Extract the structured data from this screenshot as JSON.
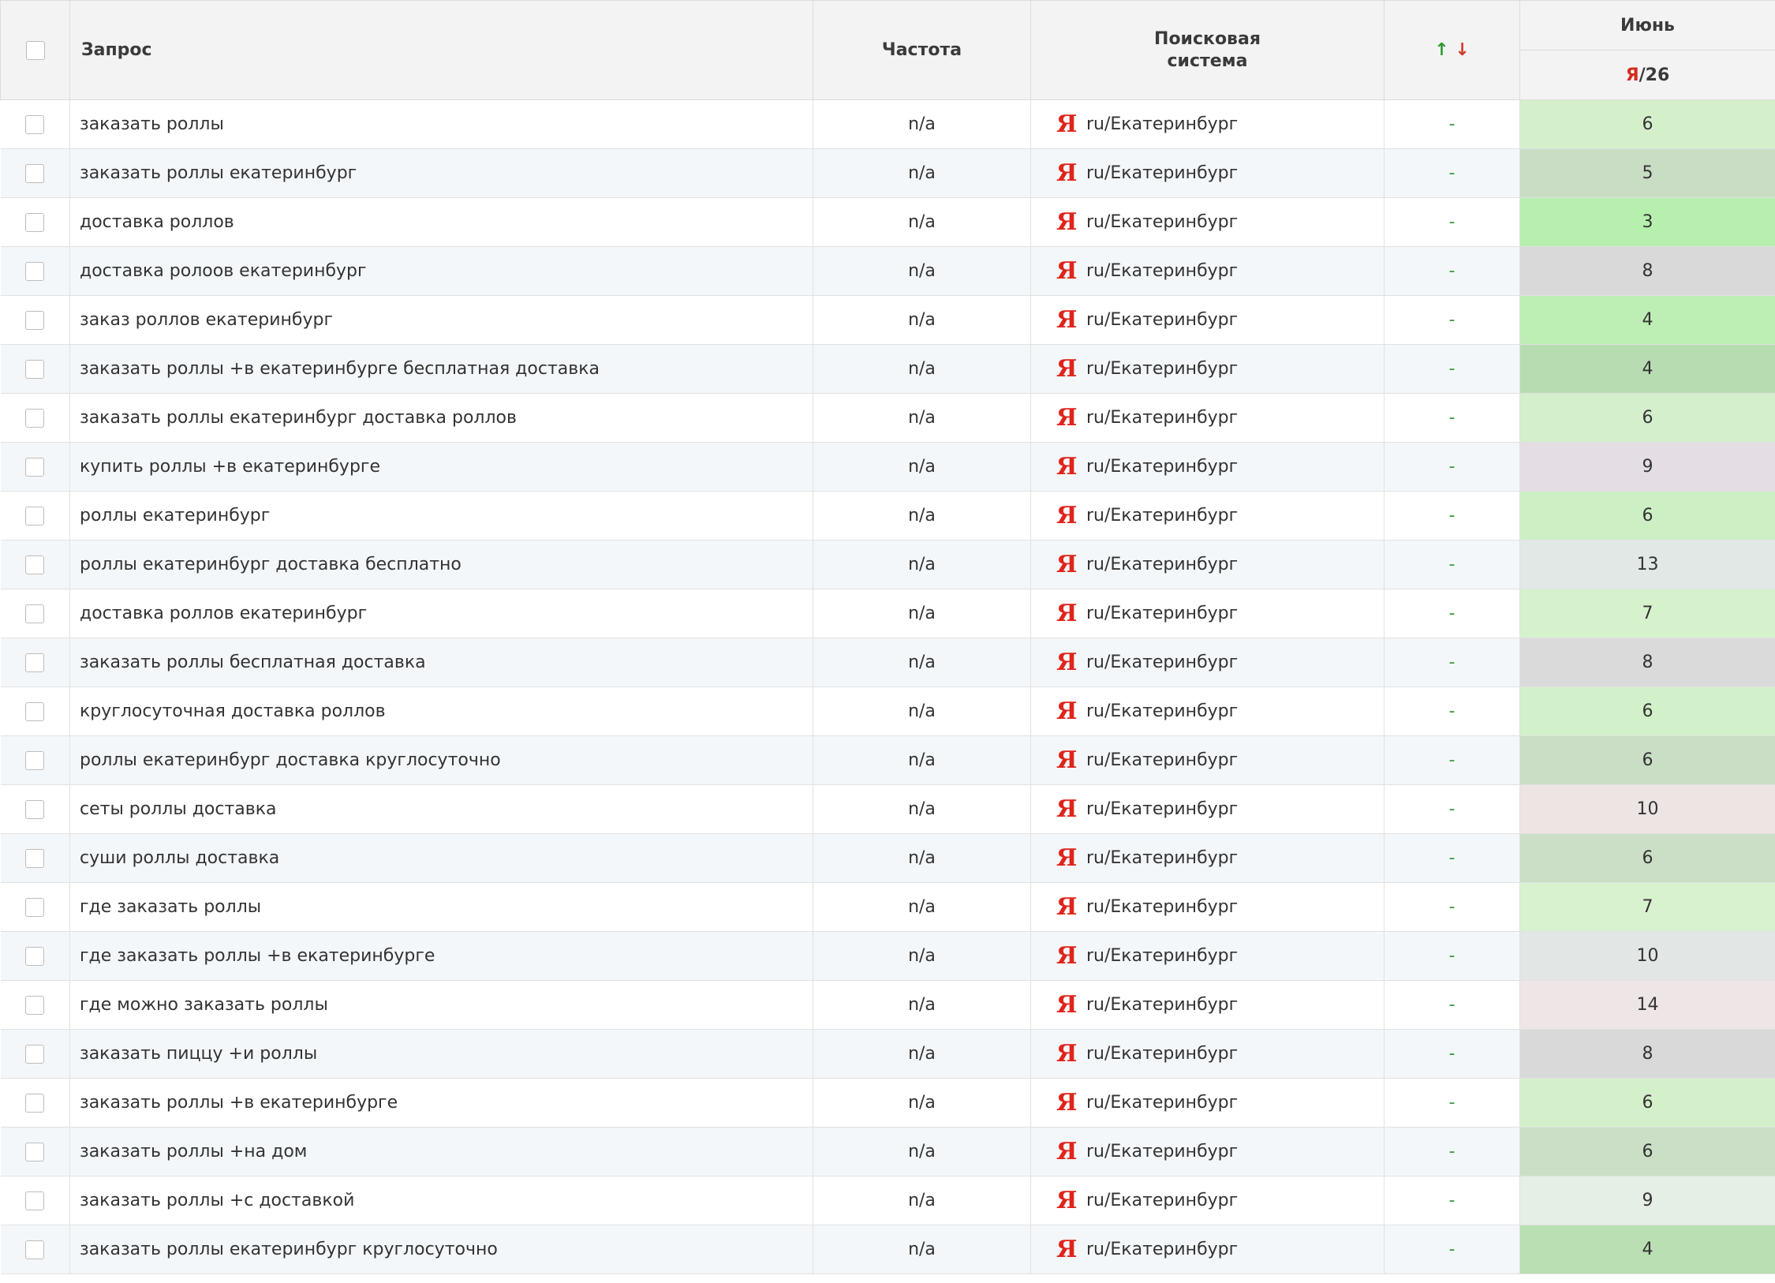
{
  "header": {
    "query": "Запрос",
    "frequency": "Частота",
    "search_engine_line1": "Поисковая",
    "search_engine_line2": "система",
    "arrow_up": "↑",
    "arrow_down": "↓",
    "month": "Июнь",
    "engine_letter": "Я",
    "engine_count": "/26"
  },
  "colors": {
    "position_bg": {
      "3": "#b7f0ae",
      "4": "#b9e6b0",
      "5": "#c9dfc6",
      "6": "#d3efcb",
      "7": "#d6f2cd",
      "8": "#dadada",
      "9": "#e3e6e6",
      "10": "#e9e4e4",
      "13": "#e3e7e6",
      "14": "#ece6e6"
    }
  },
  "rows": [
    {
      "query": "заказать роллы",
      "freq": "n/a",
      "region": "ru/Екатеринбург",
      "change": "-",
      "pos": "6",
      "bg": "#d4f0cb"
    },
    {
      "query": "заказать роллы екатеринбург",
      "freq": "n/a",
      "region": "ru/Екатеринбург",
      "change": "-",
      "pos": "5",
      "bg": "#c8ddc4"
    },
    {
      "query": "доставка роллов",
      "freq": "n/a",
      "region": "ru/Екатеринбург",
      "change": "-",
      "pos": "3",
      "bg": "#b7f0ae"
    },
    {
      "query": "доставка ролоов екатеринбург",
      "freq": "n/a",
      "region": "ru/Екатеринбург",
      "change": "-",
      "pos": "8",
      "bg": "#d9d9d9"
    },
    {
      "query": "заказ роллов екатеринбург",
      "freq": "n/a",
      "region": "ru/Екатеринбург",
      "change": "-",
      "pos": "4",
      "bg": "#bdeeb4"
    },
    {
      "query": "заказать роллы +в екатеринбурге бесплатная доставка",
      "freq": "n/a",
      "region": "ru/Екатеринбург",
      "change": "-",
      "pos": "4",
      "bg": "#b8dcb1"
    },
    {
      "query": "заказать роллы екатеринбург доставка роллов",
      "freq": "n/a",
      "region": "ru/Екатеринбург",
      "change": "-",
      "pos": "6",
      "bg": "#d3efcb"
    },
    {
      "query": "купить роллы +в екатеринбурге",
      "freq": "n/a",
      "region": "ru/Екатеринбург",
      "change": "-",
      "pos": "9",
      "bg": "#e4dde4"
    },
    {
      "query": "роллы екатеринбург",
      "freq": "n/a",
      "region": "ru/Екатеринбург",
      "change": "-",
      "pos": "6",
      "bg": "#cdefc4"
    },
    {
      "query": "роллы екатеринбург доставка бесплатно",
      "freq": "n/a",
      "region": "ru/Екатеринбург",
      "change": "-",
      "pos": "13",
      "bg": "#e1e8e6"
    },
    {
      "query": "доставка роллов екатеринбург",
      "freq": "n/a",
      "region": "ru/Екатеринбург",
      "change": "-",
      "pos": "7",
      "bg": "#d6f2cd"
    },
    {
      "query": "заказать роллы бесплатная доставка",
      "freq": "n/a",
      "region": "ru/Екатеринбург",
      "change": "-",
      "pos": "8",
      "bg": "#dadada"
    },
    {
      "query": "круглосуточная доставка роллов",
      "freq": "n/a",
      "region": "ru/Екатеринбург",
      "change": "-",
      "pos": "6",
      "bg": "#d2f0c9"
    },
    {
      "query": "роллы екатеринбург доставка круглосуточно",
      "freq": "n/a",
      "region": "ru/Екатеринбург",
      "change": "-",
      "pos": "6",
      "bg": "#c9dec5"
    },
    {
      "query": "сеты роллы доставка",
      "freq": "n/a",
      "region": "ru/Екатеринбург",
      "change": "-",
      "pos": "10",
      "bg": "#ede4e4"
    },
    {
      "query": "суши роллы доставка",
      "freq": "n/a",
      "region": "ru/Екатеринбург",
      "change": "-",
      "pos": "6",
      "bg": "#cadfc6"
    },
    {
      "query": "где заказать роллы",
      "freq": "n/a",
      "region": "ru/Екатеринбург",
      "change": "-",
      "pos": "7",
      "bg": "#d8f1cf"
    },
    {
      "query": "где заказать роллы +в екатеринбурге",
      "freq": "n/a",
      "region": "ru/Екатеринбург",
      "change": "-",
      "pos": "10",
      "bg": "#e2e6e5"
    },
    {
      "query": "где можно заказать роллы",
      "freq": "n/a",
      "region": "ru/Екатеринбург",
      "change": "-",
      "pos": "14",
      "bg": "#eee6e6"
    },
    {
      "query": "заказать пиццу +и роллы",
      "freq": "n/a",
      "region": "ru/Екатеринбург",
      "change": "-",
      "pos": "8",
      "bg": "#d9d9d9"
    },
    {
      "query": "заказать роллы +в екатеринбурге",
      "freq": "n/a",
      "region": "ru/Екатеринбург",
      "change": "-",
      "pos": "6",
      "bg": "#d4f0cb"
    },
    {
      "query": "заказать роллы +на дом",
      "freq": "n/a",
      "region": "ru/Екатеринбург",
      "change": "-",
      "pos": "6",
      "bg": "#cadfc6"
    },
    {
      "query": "заказать роллы +с доставкой",
      "freq": "n/a",
      "region": "ru/Екатеринбург",
      "change": "-",
      "pos": "9",
      "bg": "#e6efe6"
    },
    {
      "query": "заказать роллы екатеринбург круглосуточно",
      "freq": "n/a",
      "region": "ru/Екатеринбург",
      "change": "-",
      "pos": "4",
      "bg": "#b9dfb2"
    }
  ]
}
